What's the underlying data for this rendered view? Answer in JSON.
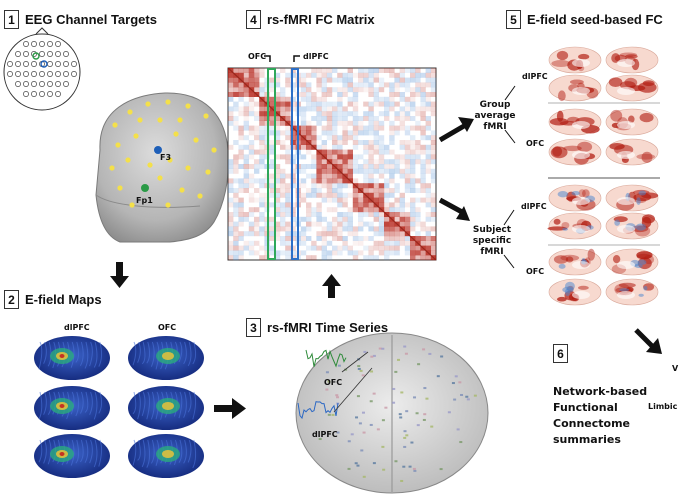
{
  "panels": {
    "p1": {
      "num": "1",
      "title": "EEG Channel Targets",
      "electrode_f3": "F3",
      "electrode_fp1": "Fp1"
    },
    "p2": {
      "num": "2",
      "title": "E-field Maps",
      "col1": "dlPFC",
      "col2": "OFC"
    },
    "p3": {
      "num": "3",
      "title": "rs-fMRI Time Series",
      "trace1": "OFC",
      "trace2": "dlPFC"
    },
    "p4": {
      "num": "4",
      "title": "rs-fMRI FC Matrix",
      "marker1": "OFC",
      "marker2": "dlPFC"
    },
    "p5": {
      "num": "5",
      "title": "E-field seed-based FC",
      "group_label": [
        "Group",
        "average",
        "fMRI"
      ],
      "subject_label": [
        "Subject",
        "specific",
        "fMRI"
      ],
      "seed1": "dlPFC",
      "seed2": "OFC",
      "seed3": "dlPFC",
      "seed4": "OFC"
    },
    "p6": {
      "num": "6",
      "summary": [
        "Network-based",
        "Functional",
        "Connectome",
        "summaries"
      ],
      "side_label": "Limbic",
      "edge_char": "V"
    }
  },
  "colors": {
    "electrode_yellow": "#f4e04a",
    "electrode_blue": "#1e5fb8",
    "electrode_green": "#2a9a46",
    "head_gray": "#b9b9b9",
    "brain_blue": "#1f3fa0",
    "fc_red": "#b21d12",
    "green_band": "#2fa85a",
    "blue_band": "#2c6fc7"
  }
}
